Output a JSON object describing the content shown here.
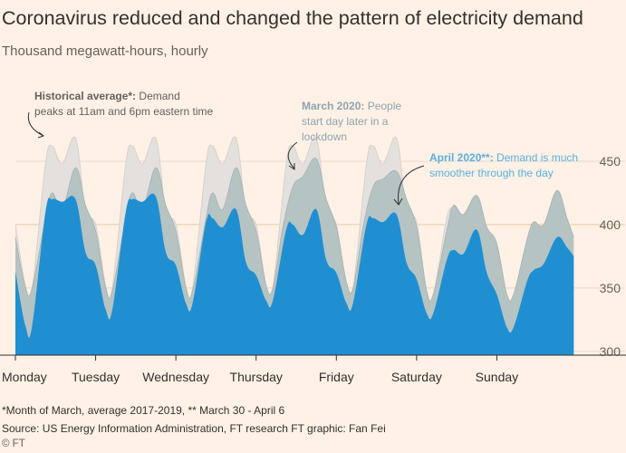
{
  "title": "Coronavirus reduced and changed the pattern of electricity demand",
  "subtitle": "Thousand megawatt-hours, hourly",
  "footnote": "*Month of March, average 2017-2019, ** March 30 - April 6",
  "source": "Source: US Energy Information Administration, FT research  FT graphic: Fan Fei",
  "credit": "© FT",
  "annotations": {
    "historical_bold": "Historical average*:",
    "historical_line1": " Demand",
    "historical_line2": "peaks at 11am and 6pm eastern time",
    "march_bold": "March 2020:",
    "march_line1": " People",
    "march_line2": "start day later in a",
    "march_line3": "lockdown",
    "april_bold": "April 2020**:",
    "april_line1": " Demand is much",
    "april_line2": "smoother through the day"
  },
  "colors": {
    "background": "#fff1e5",
    "historical": "#e3e0dd",
    "march": "#b6c3c3",
    "april": "#1f8fd2",
    "historical_label": "#66605c",
    "march_label": "#8da4ad",
    "april_label": "#5aaee0",
    "axis_text": "#66605c",
    "gridline": "#e6d9ce",
    "highlight_gridline": "#e9c8a8"
  },
  "chart_data": {
    "type": "area",
    "x_unit": "hour of week",
    "categories": [
      "Monday",
      "Tuesday",
      "Wednesday",
      "Thursday",
      "Friday",
      "Saturday",
      "Sunday"
    ],
    "yticks": [
      300,
      350,
      400,
      450
    ],
    "ylim": [
      297,
      470
    ],
    "xlim": [
      0,
      168
    ],
    "series": [
      {
        "name": "Historical average*",
        "x": [
          0,
          3,
          5,
          9,
          11,
          14,
          18,
          21,
          24,
          27,
          29,
          33,
          35,
          38,
          42,
          45,
          48,
          51,
          53,
          57,
          59,
          62,
          66,
          69,
          72,
          75,
          77,
          81,
          83,
          86,
          90,
          93,
          96,
          99,
          101,
          105,
          107,
          110,
          114,
          117,
          120,
          123,
          125,
          129,
          131,
          134,
          138,
          141,
          144,
          147,
          149,
          153,
          155,
          158,
          162,
          165,
          167
        ],
        "values": [
          400,
          352,
          350,
          448,
          462,
          448,
          468,
          410,
          400,
          352,
          350,
          448,
          462,
          448,
          468,
          410,
          400,
          352,
          350,
          448,
          462,
          448,
          468,
          410,
          400,
          352,
          350,
          448,
          462,
          448,
          468,
          410,
          400,
          352,
          350,
          448,
          462,
          448,
          468,
          410,
          402,
          348,
          345,
          405,
          412,
          404,
          422,
          392,
          380,
          340,
          336,
          378,
          392,
          385,
          412,
          392,
          385
        ]
      },
      {
        "name": "March 2020",
        "x": [
          0,
          3,
          5,
          9,
          11,
          14,
          18,
          21,
          24,
          27,
          29,
          33,
          35,
          38,
          42,
          45,
          48,
          51,
          53,
          57,
          59,
          62,
          66,
          69,
          72,
          75,
          77,
          80,
          83,
          86,
          90,
          93,
          96,
          99,
          101,
          104,
          107,
          110,
          114,
          117,
          120,
          123,
          125,
          129,
          131,
          134,
          138,
          141,
          144,
          147,
          149,
          153,
          155,
          158,
          162,
          165,
          167
        ],
        "values": [
          390,
          350,
          350,
          405,
          425,
          412,
          445,
          415,
          395,
          350,
          348,
          405,
          425,
          412,
          445,
          415,
          395,
          350,
          348,
          405,
          425,
          412,
          445,
          415,
          395,
          352,
          350,
          398,
          430,
          438,
          452,
          420,
          398,
          355,
          350,
          398,
          430,
          436,
          442,
          420,
          398,
          348,
          345,
          395,
          415,
          408,
          423,
          398,
          385,
          345,
          345,
          388,
          402,
          400,
          427,
          405,
          390
        ]
      },
      {
        "name": "April 2020**",
        "x": [
          0,
          3,
          5,
          9,
          11,
          14,
          18,
          21,
          24,
          27,
          29,
          33,
          35,
          38,
          42,
          45,
          48,
          51,
          53,
          57,
          59,
          62,
          66,
          69,
          72,
          75,
          77,
          81,
          83,
          86,
          90,
          93,
          96,
          99,
          101,
          105,
          107,
          110,
          114,
          117,
          120,
          123,
          125,
          129,
          131,
          134,
          138,
          141,
          144,
          147,
          149,
          153,
          155,
          158,
          162,
          165,
          167
        ],
        "values": [
          363,
          320,
          320,
          410,
          420,
          418,
          420,
          378,
          368,
          333,
          333,
          410,
          420,
          418,
          422,
          378,
          368,
          338,
          338,
          402,
          405,
          398,
          412,
          370,
          360,
          340,
          340,
          396,
          400,
          392,
          412,
          372,
          362,
          338,
          338,
          400,
          405,
          402,
          408,
          370,
          357,
          330,
          330,
          372,
          380,
          377,
          396,
          362,
          345,
          319,
          319,
          355,
          364,
          369,
          390,
          382,
          375
        ]
      }
    ]
  }
}
